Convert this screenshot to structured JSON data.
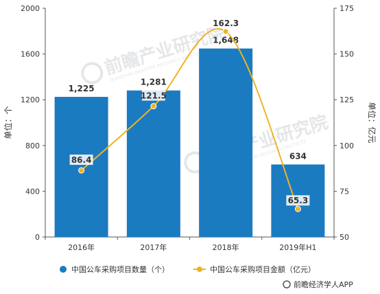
{
  "chart_data": {
    "type": "bar",
    "categories": [
      "2016年",
      "2017年",
      "2018年",
      "2019年H1"
    ],
    "series": [
      {
        "name": "中国公车采购项目数量（个）",
        "type": "bar",
        "axis": "left",
        "values": [
          1225,
          1281,
          1648,
          634
        ],
        "labels": [
          "1,225",
          "1,281",
          "1,648",
          "634"
        ],
        "color": "#1b7bc1"
      },
      {
        "name": "中国公车采购项目金额（亿元）",
        "type": "line",
        "axis": "right",
        "values": [
          86.4,
          121.5,
          162.3,
          65.3
        ],
        "labels": [
          "86.4",
          "121.5",
          "162.3",
          "65.3"
        ],
        "color": "#f0b323"
      }
    ],
    "y_left": {
      "label": "单位：个",
      "range": [
        0,
        2000
      ],
      "ticks": [
        "0",
        "400",
        "800",
        "1200",
        "1600",
        "2000"
      ]
    },
    "y_right": {
      "label": "单位：亿元",
      "range": [
        50,
        175
      ],
      "ticks": [
        "50",
        "75",
        "100",
        "125",
        "150",
        "175"
      ]
    },
    "legend_position": "bottom",
    "grid": false
  },
  "source": "前瞻经济学人APP",
  "watermark": {
    "text": "前瞻产业研究院",
    "subtext": "QIANZHAN INDUSTRY RESEARCH INSTITUTE"
  },
  "colors": {
    "bar": "#1b7bc1",
    "line": "#f0b323",
    "axis": "#555555",
    "text": "#333333",
    "watermark": "#cfd3d6"
  }
}
